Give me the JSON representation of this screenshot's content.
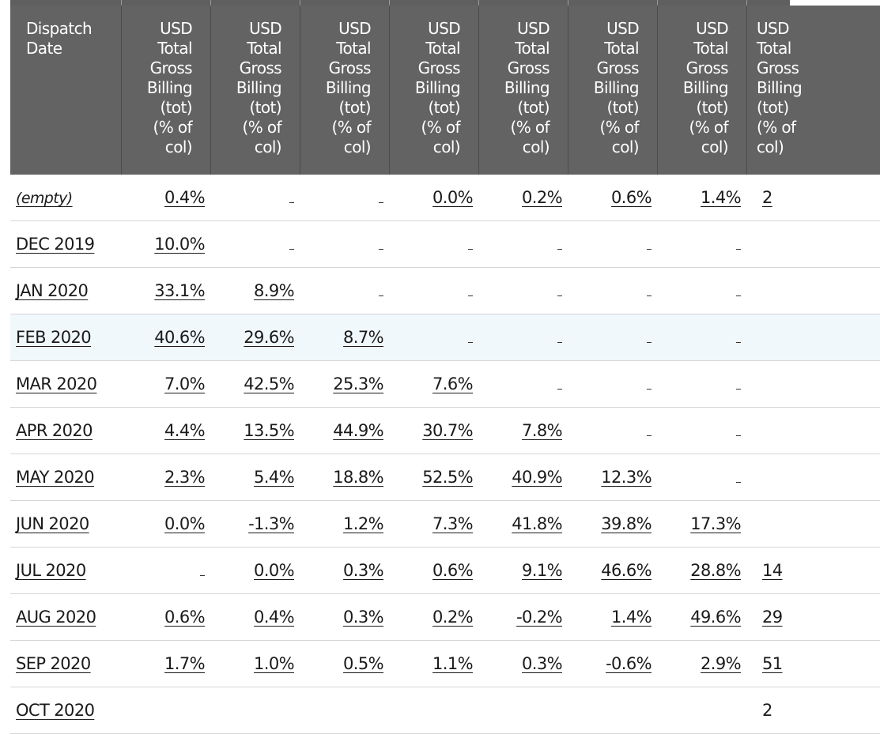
{
  "table": {
    "headers": {
      "dispatch_date": "Dispatch\nDate",
      "metric": "USD\nTotal\nGross\nBilling\n(tot)\n(% of\ncol)"
    },
    "rows": [
      {
        "date": "(empty)",
        "cells": [
          "0.4%",
          "",
          "",
          "0.0%",
          "0.2%",
          "0.6%",
          "1.4%",
          "2"
        ]
      },
      {
        "date": "DEC 2019",
        "cells": [
          "10.0%",
          "",
          "",
          "",
          "",
          "",
          "",
          ""
        ]
      },
      {
        "date": "JAN 2020",
        "cells": [
          "33.1%",
          "8.9%",
          "",
          "",
          "",
          "",
          "",
          ""
        ]
      },
      {
        "date": "FEB 2020",
        "cells": [
          "40.6%",
          "29.6%",
          "8.7%",
          "",
          "",
          "",
          "",
          ""
        ]
      },
      {
        "date": "MAR 2020",
        "cells": [
          "7.0%",
          "42.5%",
          "25.3%",
          "7.6%",
          "",
          "",
          "",
          ""
        ]
      },
      {
        "date": "APR 2020",
        "cells": [
          "4.4%",
          "13.5%",
          "44.9%",
          "30.7%",
          "7.8%",
          "",
          "",
          ""
        ]
      },
      {
        "date": "MAY 2020",
        "cells": [
          "2.3%",
          "5.4%",
          "18.8%",
          "52.5%",
          "40.9%",
          "12.3%",
          "",
          ""
        ]
      },
      {
        "date": "JUN 2020",
        "cells": [
          "0.0%",
          "-1.3%",
          "1.2%",
          "7.3%",
          "41.8%",
          "39.8%",
          "17.3%",
          ""
        ]
      },
      {
        "date": "JUL 2020",
        "cells": [
          "",
          "0.0%",
          "0.3%",
          "0.6%",
          "9.1%",
          "46.6%",
          "28.8%",
          "14"
        ]
      },
      {
        "date": "AUG 2020",
        "cells": [
          "0.6%",
          "0.4%",
          "0.3%",
          "0.2%",
          "-0.2%",
          "1.4%",
          "49.6%",
          "29"
        ]
      },
      {
        "date": "SEP 2020",
        "cells": [
          "1.7%",
          "1.0%",
          "0.5%",
          "1.1%",
          "0.3%",
          "-0.6%",
          "2.9%",
          "51"
        ]
      },
      {
        "date": "OCT 2020",
        "cells": [
          "",
          "",
          "",
          "",
          "",
          "",
          "",
          "2"
        ]
      }
    ]
  },
  "colors": {
    "header_bg": "#636363",
    "header_text": "#ffffff",
    "row_highlight": "#f1f8fc",
    "row_border": "#d6d6d6"
  }
}
